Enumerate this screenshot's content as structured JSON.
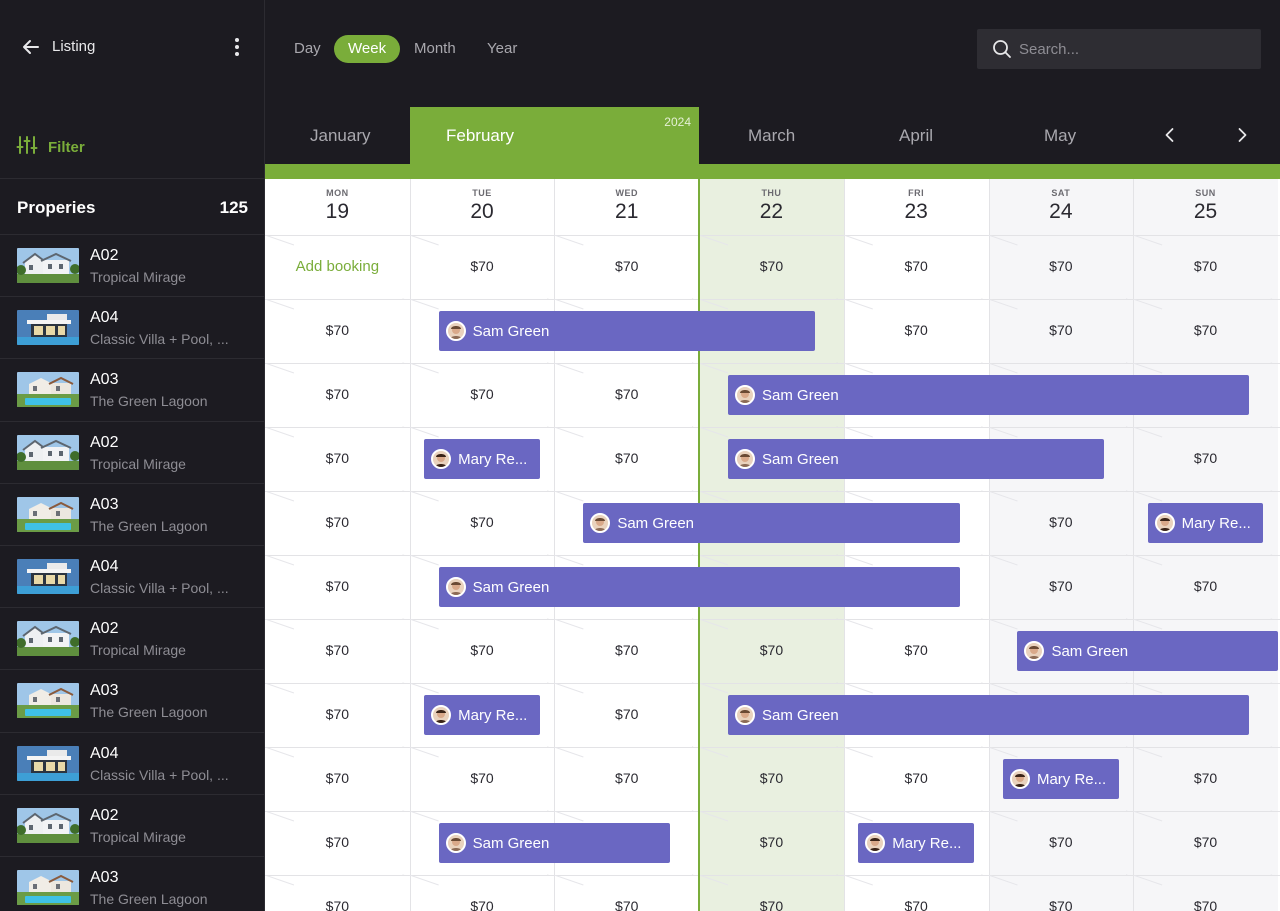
{
  "sidebar": {
    "back_label": "Listing",
    "filter_label": "Filter",
    "properties_title": "Properies",
    "properties_count": "125",
    "items": [
      {
        "code": "A02",
        "name": "Tropical Mirage",
        "thumb": "villa-white"
      },
      {
        "code": "A04",
        "name": "Classic Villa + Pool, ...",
        "thumb": "villa-modern"
      },
      {
        "code": "A03",
        "name": "The Green Lagoon",
        "thumb": "villa-pool"
      },
      {
        "code": "A02",
        "name": "Tropical Mirage",
        "thumb": "villa-white"
      },
      {
        "code": "A03",
        "name": "The Green Lagoon",
        "thumb": "villa-pool"
      },
      {
        "code": "A04",
        "name": "Classic Villa + Pool, ...",
        "thumb": "villa-modern"
      },
      {
        "code": "A02",
        "name": "Tropical Mirage",
        "thumb": "villa-white"
      },
      {
        "code": "A03",
        "name": "The Green Lagoon",
        "thumb": "villa-pool"
      },
      {
        "code": "A04",
        "name": "Classic Villa + Pool, ...",
        "thumb": "villa-modern"
      },
      {
        "code": "A02",
        "name": "Tropical Mirage",
        "thumb": "villa-white"
      },
      {
        "code": "A03",
        "name": "The Green Lagoon",
        "thumb": "villa-pool"
      }
    ]
  },
  "view_tabs": [
    "Day",
    "Week",
    "Month",
    "Year"
  ],
  "active_view": "Week",
  "search": {
    "placeholder": "Search..."
  },
  "months": [
    "January",
    "February",
    "March",
    "April",
    "May"
  ],
  "active_month": "February",
  "year": "2024",
  "days": [
    {
      "dow": "MON",
      "num": "19"
    },
    {
      "dow": "TUE",
      "num": "20"
    },
    {
      "dow": "WED",
      "num": "21"
    },
    {
      "dow": "THU",
      "num": "22"
    },
    {
      "dow": "FRI",
      "num": "23"
    },
    {
      "dow": "SAT",
      "num": "24"
    },
    {
      "dow": "SUN",
      "num": "25"
    }
  ],
  "add_booking_label": "Add booking",
  "price": "$70",
  "rows": [
    {
      "cells": [
        "add",
        "$70",
        "$70",
        "$70",
        "$70",
        "$70",
        "$70"
      ],
      "bookings": []
    },
    {
      "cells": [
        "$70",
        "",
        "",
        "",
        "$70",
        "$70",
        "$70"
      ],
      "bookings": [
        {
          "guest": "Sam Green",
          "start": 1.2,
          "end": 3.8
        }
      ]
    },
    {
      "cells": [
        "$70",
        "$70",
        "$70",
        "",
        "",
        "",
        ""
      ],
      "bookings": [
        {
          "guest": "Sam Green",
          "start": 3.2,
          "end": 6.8
        }
      ]
    },
    {
      "cells": [
        "$70",
        "",
        "$70",
        "",
        "",
        "",
        "$70"
      ],
      "bookings": [
        {
          "guest": "Mary Re...",
          "start": 1.1,
          "end": 1.9
        },
        {
          "guest": "Sam Green",
          "start": 3.2,
          "end": 5.8
        }
      ]
    },
    {
      "cells": [
        "$70",
        "$70",
        "",
        "",
        "",
        "$70",
        ""
      ],
      "bookings": [
        {
          "guest": "Sam Green",
          "start": 2.2,
          "end": 4.8
        },
        {
          "guest": "Mary Re...",
          "start": 6.1,
          "end": 6.9
        }
      ]
    },
    {
      "cells": [
        "$70",
        "",
        "",
        "",
        "",
        "$70",
        "$70"
      ],
      "bookings": [
        {
          "guest": "Sam Green",
          "start": 1.2,
          "end": 4.8
        }
      ]
    },
    {
      "cells": [
        "$70",
        "$70",
        "$70",
        "$70",
        "$70",
        "",
        ""
      ],
      "bookings": [
        {
          "guest": "Sam Green",
          "start": 5.2,
          "end": 7.0
        }
      ]
    },
    {
      "cells": [
        "$70",
        "",
        "$70",
        "",
        "",
        "",
        ""
      ],
      "bookings": [
        {
          "guest": "Mary Re...",
          "start": 1.1,
          "end": 1.9
        },
        {
          "guest": "Sam Green",
          "start": 3.2,
          "end": 6.8
        }
      ]
    },
    {
      "cells": [
        "$70",
        "$70",
        "$70",
        "$70",
        "$70",
        "",
        "$70"
      ],
      "bookings": [
        {
          "guest": "Mary Re...",
          "start": 5.1,
          "end": 5.9
        }
      ]
    },
    {
      "cells": [
        "$70",
        "",
        "",
        "$70",
        "",
        "$70",
        "$70"
      ],
      "bookings": [
        {
          "guest": "Sam Green",
          "start": 1.2,
          "end": 2.8
        },
        {
          "guest": "Mary Re...",
          "start": 4.1,
          "end": 4.9
        }
      ]
    },
    {
      "cells": [
        "$70",
        "$70",
        "$70",
        "$70",
        "$70",
        "$70",
        "$70"
      ],
      "bookings": []
    }
  ],
  "colors": {
    "accent": "#7aad3a",
    "booking": "#6a67c2",
    "today_bg": "#e9f0e0",
    "weekend_bg": "#f6f6f8",
    "dark_bg": "#1c1b21"
  }
}
